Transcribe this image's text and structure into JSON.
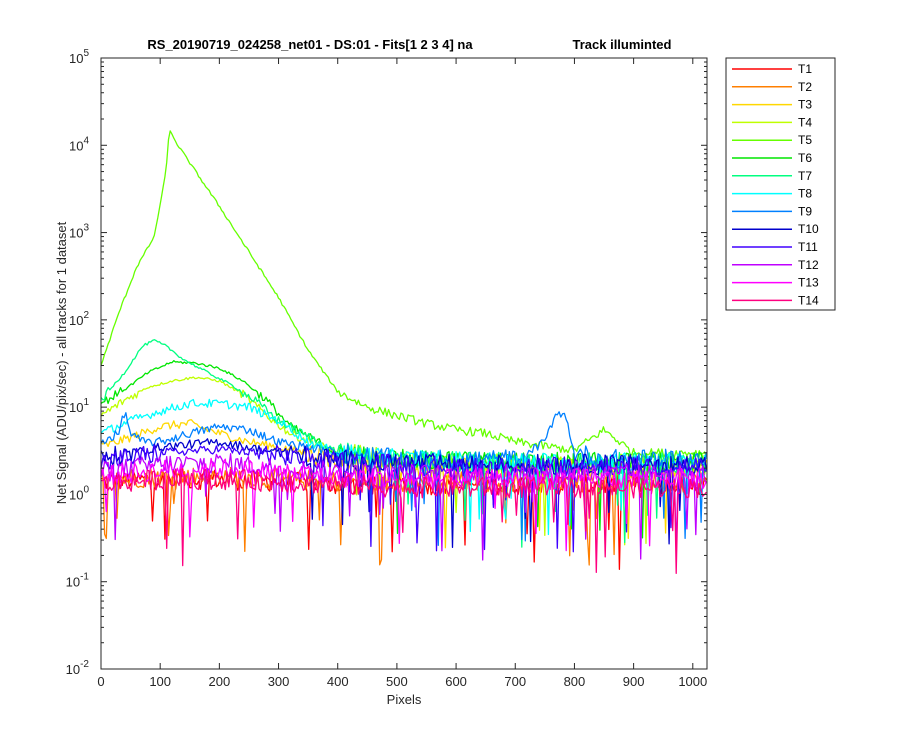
{
  "chart_data": {
    "type": "line",
    "title": "RS_20190719_024258_net01 - DS:01 - Fits[1  2  3  4]   na",
    "title_right": "Track illuminted",
    "xlabel": "Pixels",
    "ylabel": "Net Signal (ADU/pix/sec) - all tracks for 1 dataset",
    "xlim": [
      0,
      1024
    ],
    "ylim": [
      0.01,
      100000
    ],
    "yscale": "log",
    "grid": false,
    "legend_position": "outside-right",
    "x_ticks": [
      {
        "value": 0,
        "label": "0"
      },
      {
        "value": 100,
        "label": "100"
      },
      {
        "value": 200,
        "label": "200"
      },
      {
        "value": 300,
        "label": "300"
      },
      {
        "value": 400,
        "label": "400"
      },
      {
        "value": 500,
        "label": "500"
      },
      {
        "value": 600,
        "label": "600"
      },
      {
        "value": 700,
        "label": "700"
      },
      {
        "value": 800,
        "label": "800"
      },
      {
        "value": 900,
        "label": "900"
      },
      {
        "value": 1000,
        "label": "1000"
      }
    ],
    "y_ticks": [
      {
        "value": 0.01,
        "base": "10",
        "exp": "-2"
      },
      {
        "value": 0.1,
        "base": "10",
        "exp": "-1"
      },
      {
        "value": 1,
        "base": "10",
        "exp": "0"
      },
      {
        "value": 10,
        "base": "10",
        "exp": "1"
      },
      {
        "value": 100,
        "base": "10",
        "exp": "2"
      },
      {
        "value": 1000,
        "base": "10",
        "exp": "3"
      },
      {
        "value": 10000,
        "base": "10",
        "exp": "4"
      },
      {
        "value": 100000,
        "base": "10",
        "exp": "5"
      }
    ],
    "series": [
      {
        "name": "T1",
        "color": "#ff0000",
        "x": [
          0,
          100,
          200,
          300,
          400,
          500,
          600,
          700,
          800,
          900,
          1024
        ],
        "y": [
          1.4,
          1.5,
          1.5,
          1.4,
          1.3,
          1.3,
          1.3,
          1.3,
          1.3,
          1.3,
          1.3
        ]
      },
      {
        "name": "T2",
        "color": "#ff7f00",
        "x": [
          0,
          100,
          200,
          300,
          400,
          500,
          600,
          700,
          800,
          900,
          1024
        ],
        "y": [
          1.5,
          1.6,
          1.6,
          1.5,
          1.4,
          1.4,
          1.4,
          1.4,
          1.4,
          1.4,
          1.4
        ]
      },
      {
        "name": "T3",
        "color": "#ffd700",
        "x": [
          0,
          50,
          100,
          150,
          200,
          250,
          300,
          400,
          500,
          600,
          700,
          800,
          900,
          1024
        ],
        "y": [
          3.5,
          4.5,
          6,
          6.5,
          5,
          4,
          3.5,
          2.5,
          2,
          2,
          2,
          2,
          2,
          2
        ]
      },
      {
        "name": "T4",
        "color": "#bfff00",
        "x": [
          0,
          40,
          80,
          120,
          160,
          200,
          240,
          280,
          320,
          400,
          500,
          600,
          700,
          800,
          900,
          1024
        ],
        "y": [
          8,
          12,
          17,
          20,
          22,
          20,
          14,
          8,
          5,
          3,
          2.5,
          2.3,
          2.2,
          2.2,
          2.2,
          2.2
        ]
      },
      {
        "name": "T5",
        "color": "#66ff00",
        "x": [
          0,
          30,
          60,
          90,
          110,
          115,
          130,
          160,
          200,
          250,
          300,
          350,
          400,
          450,
          500,
          550,
          600,
          650,
          700,
          760,
          800,
          850,
          900,
          1024
        ],
        "y": [
          30,
          120,
          400,
          900,
          5000,
          15000,
          10000,
          5000,
          2000,
          600,
          180,
          45,
          15,
          10,
          8,
          6.5,
          5.5,
          5,
          4,
          3.5,
          3.2,
          5.5,
          3,
          3
        ]
      },
      {
        "name": "T6",
        "color": "#00e600",
        "x": [
          0,
          40,
          80,
          120,
          160,
          200,
          240,
          280,
          320,
          400,
          500,
          600,
          700,
          800,
          900,
          1024
        ],
        "y": [
          11,
          16,
          25,
          33,
          32,
          28,
          20,
          12,
          6,
          3,
          2.5,
          2.4,
          2.3,
          2.3,
          2.3,
          2.3
        ]
      },
      {
        "name": "T7",
        "color": "#00ff80",
        "x": [
          0,
          40,
          70,
          90,
          110,
          140,
          180,
          220,
          260,
          300,
          400,
          500,
          600,
          700,
          800,
          900,
          1024
        ],
        "y": [
          12,
          25,
          50,
          58,
          50,
          35,
          25,
          18,
          12,
          7,
          3,
          2.6,
          2.4,
          2.3,
          2.3,
          2.3,
          2.3
        ]
      },
      {
        "name": "T8",
        "color": "#00ffff",
        "x": [
          0,
          50,
          100,
          150,
          200,
          250,
          300,
          350,
          400,
          500,
          600,
          700,
          800,
          900,
          1024
        ],
        "y": [
          5,
          7,
          9,
          11,
          11,
          10,
          7,
          4,
          3,
          2.5,
          2.4,
          2.3,
          2.3,
          2.3,
          2.3
        ]
      },
      {
        "name": "T9",
        "color": "#0080ff",
        "x": [
          0,
          30,
          40,
          50,
          70,
          100,
          150,
          200,
          250,
          300,
          400,
          500,
          600,
          700,
          750,
          770,
          785,
          800,
          850,
          900,
          1024
        ],
        "y": [
          4,
          5,
          9,
          5,
          4,
          4,
          5,
          6,
          5.5,
          4,
          3,
          2.5,
          2.5,
          2.5,
          4,
          9,
          8,
          3,
          2.5,
          2.5,
          2.5
        ]
      },
      {
        "name": "T10",
        "color": "#0000cc",
        "x": [
          0,
          100,
          200,
          300,
          400,
          500,
          600,
          700,
          800,
          900,
          1024
        ],
        "y": [
          2.5,
          3.5,
          4,
          3,
          2.5,
          2.3,
          2.2,
          2.2,
          2.2,
          2.2,
          2.2
        ]
      },
      {
        "name": "T11",
        "color": "#4000ff",
        "x": [
          0,
          100,
          200,
          300,
          400,
          500,
          600,
          700,
          800,
          900,
          1024
        ],
        "y": [
          2.3,
          3,
          3.3,
          2.8,
          2.4,
          2.2,
          2.1,
          2.1,
          2.1,
          2.1,
          2.1
        ]
      },
      {
        "name": "T12",
        "color": "#bf00ff",
        "x": [
          0,
          100,
          200,
          300,
          400,
          500,
          600,
          700,
          800,
          900,
          1024
        ],
        "y": [
          1.8,
          2.2,
          2.3,
          2,
          1.8,
          1.7,
          1.7,
          1.7,
          1.7,
          1.7,
          1.7
        ]
      },
      {
        "name": "T13",
        "color": "#ff00ff",
        "x": [
          0,
          100,
          200,
          300,
          400,
          500,
          600,
          700,
          800,
          900,
          1024
        ],
        "y": [
          1.6,
          1.9,
          2,
          1.8,
          1.6,
          1.5,
          1.5,
          1.5,
          1.5,
          1.5,
          1.5
        ]
      },
      {
        "name": "T14",
        "color": "#ff0080",
        "x": [
          0,
          100,
          200,
          300,
          400,
          500,
          600,
          700,
          800,
          900,
          1024
        ],
        "y": [
          1.3,
          1.5,
          1.5,
          1.4,
          1.3,
          1.2,
          1.2,
          1.2,
          1.2,
          1.2,
          1.2
        ]
      }
    ]
  }
}
